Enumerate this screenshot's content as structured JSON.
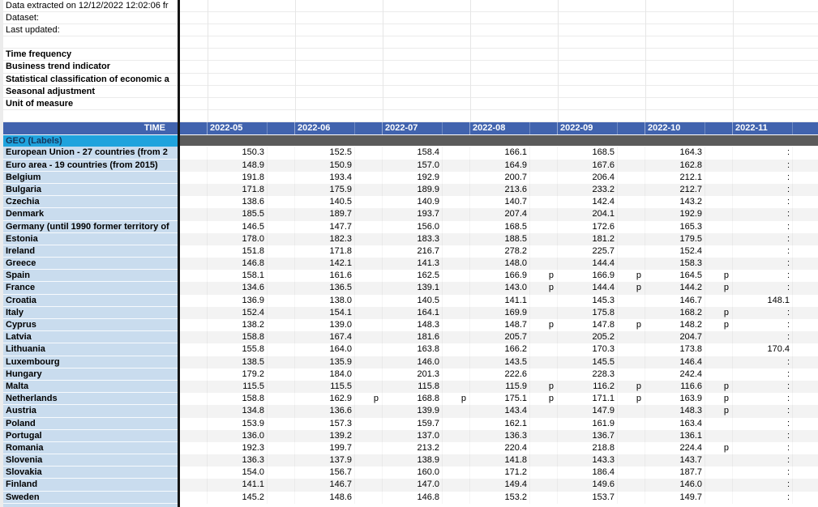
{
  "meta": {
    "info_rows": [
      "Data extracted on 12/12/2022 12:02:06 fr",
      "Dataset:",
      "Last updated:"
    ],
    "field_labels": [
      "Time frequency",
      "Business trend indicator",
      "Statistical classification of economic a",
      "Seasonal adjustment",
      "Unit of measure"
    ]
  },
  "colors": {
    "header_blue": "#4163AE",
    "geo_cyan": "#1FA3DD",
    "geo_text": "#16365C",
    "label_bg": "#C9DCEE",
    "band_gray": "#5B5B5B",
    "stripe": "#F3F3F3",
    "divider": "#151515"
  },
  "table": {
    "time_header": "TIME",
    "geo_header": "GEO (Labels)",
    "months": [
      "2022-05",
      "2022-06",
      "2022-07",
      "2022-08",
      "2022-09",
      "2022-10",
      "2022-11"
    ],
    "rows": [
      {
        "geo": "European Union - 27 countries (from 2",
        "values": [
          "150.3",
          "152.5",
          "158.4",
          "166.1",
          "168.5",
          "164.3",
          ":"
        ],
        "flags": [
          "",
          "",
          "",
          "",
          "",
          "",
          ""
        ]
      },
      {
        "geo": "Euro area - 19 countries  (from 2015)",
        "values": [
          "148.9",
          "150.9",
          "157.0",
          "164.9",
          "167.6",
          "162.8",
          ":"
        ],
        "flags": [
          "",
          "",
          "",
          "",
          "",
          "",
          ""
        ]
      },
      {
        "geo": "Belgium",
        "values": [
          "191.8",
          "193.4",
          "192.9",
          "200.7",
          "206.4",
          "212.1",
          ":"
        ],
        "flags": [
          "",
          "",
          "",
          "",
          "",
          "",
          ""
        ]
      },
      {
        "geo": "Bulgaria",
        "values": [
          "171.8",
          "175.9",
          "189.9",
          "213.6",
          "233.2",
          "212.7",
          ":"
        ],
        "flags": [
          "",
          "",
          "",
          "",
          "",
          "",
          ""
        ]
      },
      {
        "geo": "Czechia",
        "values": [
          "138.6",
          "140.5",
          "140.9",
          "140.7",
          "142.4",
          "143.2",
          ":"
        ],
        "flags": [
          "",
          "",
          "",
          "",
          "",
          "",
          ""
        ]
      },
      {
        "geo": "Denmark",
        "values": [
          "185.5",
          "189.7",
          "193.7",
          "207.4",
          "204.1",
          "192.9",
          ":"
        ],
        "flags": [
          "",
          "",
          "",
          "",
          "",
          "",
          ""
        ]
      },
      {
        "geo": "Germany (until 1990 former territory of",
        "values": [
          "146.5",
          "147.7",
          "156.0",
          "168.5",
          "172.6",
          "165.3",
          ":"
        ],
        "flags": [
          "",
          "",
          "",
          "",
          "",
          "",
          ""
        ]
      },
      {
        "geo": "Estonia",
        "values": [
          "178.0",
          "182.3",
          "183.3",
          "188.5",
          "181.2",
          "179.5",
          ":"
        ],
        "flags": [
          "",
          "",
          "",
          "",
          "",
          "",
          ""
        ]
      },
      {
        "geo": "Ireland",
        "values": [
          "151.8",
          "171.8",
          "216.7",
          "278.2",
          "225.7",
          "152.4",
          ":"
        ],
        "flags": [
          "",
          "",
          "",
          "",
          "",
          "",
          ""
        ]
      },
      {
        "geo": "Greece",
        "values": [
          "146.8",
          "142.1",
          "141.3",
          "148.0",
          "144.4",
          "158.3",
          ":"
        ],
        "flags": [
          "",
          "",
          "",
          "",
          "",
          "",
          ""
        ]
      },
      {
        "geo": "Spain",
        "values": [
          "158.1",
          "161.6",
          "162.5",
          "166.9",
          "166.9",
          "164.5",
          ":"
        ],
        "flags": [
          "",
          "",
          "",
          "p",
          "p",
          "p",
          ""
        ]
      },
      {
        "geo": "France",
        "values": [
          "134.6",
          "136.5",
          "139.1",
          "143.0",
          "144.4",
          "144.2",
          ":"
        ],
        "flags": [
          "",
          "",
          "",
          "p",
          "p",
          "p",
          ""
        ]
      },
      {
        "geo": "Croatia",
        "values": [
          "136.9",
          "138.0",
          "140.5",
          "141.1",
          "145.3",
          "146.7",
          "148.1"
        ],
        "flags": [
          "",
          "",
          "",
          "",
          "",
          "",
          ""
        ]
      },
      {
        "geo": "Italy",
        "values": [
          "152.4",
          "154.1",
          "164.1",
          "169.9",
          "175.8",
          "168.2",
          ":"
        ],
        "flags": [
          "",
          "",
          "",
          "",
          "",
          "p",
          ""
        ]
      },
      {
        "geo": "Cyprus",
        "values": [
          "138.2",
          "139.0",
          "148.3",
          "148.7",
          "147.8",
          "148.2",
          ":"
        ],
        "flags": [
          "",
          "",
          "",
          "p",
          "p",
          "p",
          ""
        ]
      },
      {
        "geo": "Latvia",
        "values": [
          "158.8",
          "167.4",
          "181.6",
          "205.7",
          "205.2",
          "204.7",
          ":"
        ],
        "flags": [
          "",
          "",
          "",
          "",
          "",
          "",
          ""
        ]
      },
      {
        "geo": "Lithuania",
        "values": [
          "155.8",
          "164.0",
          "163.8",
          "166.2",
          "170.3",
          "173.8",
          "170.4"
        ],
        "flags": [
          "",
          "",
          "",
          "",
          "",
          "",
          ""
        ]
      },
      {
        "geo": "Luxembourg",
        "values": [
          "138.5",
          "135.9",
          "146.0",
          "143.5",
          "145.5",
          "146.4",
          ":"
        ],
        "flags": [
          "",
          "",
          "",
          "",
          "",
          "",
          ""
        ]
      },
      {
        "geo": "Hungary",
        "values": [
          "179.2",
          "184.0",
          "201.3",
          "222.6",
          "228.3",
          "242.4",
          ":"
        ],
        "flags": [
          "",
          "",
          "",
          "",
          "",
          "",
          ""
        ]
      },
      {
        "geo": "Malta",
        "values": [
          "115.5",
          "115.5",
          "115.8",
          "115.9",
          "116.2",
          "116.6",
          ":"
        ],
        "flags": [
          "",
          "",
          "",
          "p",
          "p",
          "p",
          ""
        ]
      },
      {
        "geo": "Netherlands",
        "values": [
          "158.8",
          "162.9",
          "168.8",
          "175.1",
          "171.1",
          "163.9",
          ":"
        ],
        "flags": [
          "",
          "p",
          "p",
          "p",
          "p",
          "p",
          ""
        ]
      },
      {
        "geo": "Austria",
        "values": [
          "134.8",
          "136.6",
          "139.9",
          "143.4",
          "147.9",
          "148.3",
          ":"
        ],
        "flags": [
          "",
          "",
          "",
          "",
          "",
          "p",
          ""
        ]
      },
      {
        "geo": "Poland",
        "values": [
          "153.9",
          "157.3",
          "159.7",
          "162.1",
          "161.9",
          "163.4",
          ":"
        ],
        "flags": [
          "",
          "",
          "",
          "",
          "",
          "",
          ""
        ]
      },
      {
        "geo": "Portugal",
        "values": [
          "136.0",
          "139.2",
          "137.0",
          "136.3",
          "136.7",
          "136.1",
          ":"
        ],
        "flags": [
          "",
          "",
          "",
          "",
          "",
          "",
          ""
        ]
      },
      {
        "geo": "Romania",
        "values": [
          "192.3",
          "199.7",
          "213.2",
          "220.4",
          "218.8",
          "224.4",
          ":"
        ],
        "flags": [
          "",
          "",
          "",
          "",
          "",
          "p",
          ""
        ]
      },
      {
        "geo": "Slovenia",
        "values": [
          "136.3",
          "137.9",
          "138.9",
          "141.8",
          "143.3",
          "143.7",
          ":"
        ],
        "flags": [
          "",
          "",
          "",
          "",
          "",
          "",
          ""
        ]
      },
      {
        "geo": "Slovakia",
        "values": [
          "154.0",
          "156.7",
          "160.0",
          "171.2",
          "186.4",
          "187.7",
          ":"
        ],
        "flags": [
          "",
          "",
          "",
          "",
          "",
          "",
          ""
        ]
      },
      {
        "geo": "Finland",
        "values": [
          "141.1",
          "146.7",
          "147.0",
          "149.4",
          "149.6",
          "146.0",
          ":"
        ],
        "flags": [
          "",
          "",
          "",
          "",
          "",
          "",
          ""
        ]
      },
      {
        "geo": "Sweden",
        "values": [
          "145.2",
          "148.6",
          "146.8",
          "153.2",
          "153.7",
          "149.7",
          ":"
        ],
        "flags": [
          "",
          "",
          "",
          "",
          "",
          "",
          ""
        ]
      }
    ]
  }
}
